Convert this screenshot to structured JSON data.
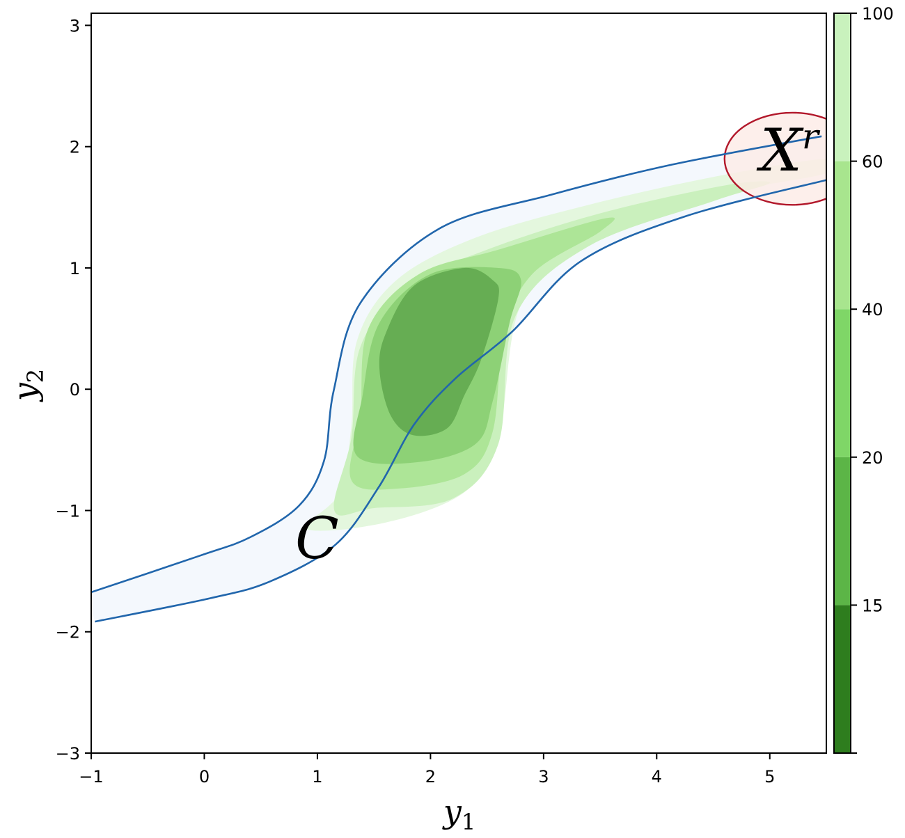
{
  "chart_data": {
    "type": "contour",
    "xlabel": {
      "base": "y",
      "sub": "1"
    },
    "ylabel": {
      "base": "y",
      "sub": "2"
    },
    "xlim": [
      -1,
      5.5
    ],
    "ylim": [
      -3,
      3.1
    ],
    "xticks": [
      -1,
      0,
      1,
      2,
      3,
      4,
      5
    ],
    "xtick_labels": [
      "−1",
      "0",
      "1",
      "2",
      "3",
      "4",
      "5"
    ],
    "yticks": [
      -3,
      -2,
      -1,
      0,
      1,
      2,
      3
    ],
    "ytick_labels": [
      "−3",
      "−2",
      "−1",
      "0",
      "1",
      "2",
      "3"
    ],
    "grid": false,
    "colorbar": {
      "levels": [
        15,
        20,
        40,
        60,
        100
      ],
      "tick_labels": [
        "15",
        "20",
        "40",
        "60",
        "100"
      ],
      "colors": [
        "#2e7d1e",
        "#5cb547",
        "#7fd667",
        "#a8e58e",
        "#c9f2bd"
      ],
      "fill_colors": [
        "#66ad53",
        "#8dd176",
        "#ade597",
        "#caf0bd",
        "#e4f7de"
      ]
    },
    "band": {
      "label": "C",
      "edge_color": "#2166ac",
      "fill_color": "#f4f8fd",
      "center": [
        [
          -1,
          -1.8
        ],
        [
          0,
          -1.55
        ],
        [
          0.5,
          -1.4
        ],
        [
          1.0,
          -1.12
        ],
        [
          1.3,
          -0.7
        ],
        [
          1.5,
          -0.15
        ],
        [
          1.8,
          0.4
        ],
        [
          2.4,
          0.9
        ],
        [
          3.2,
          1.33
        ],
        [
          4.2,
          1.64
        ],
        [
          5.5,
          1.91
        ]
      ],
      "halfwidth": [
        0.12,
        0.18,
        0.2,
        0.22,
        0.25,
        0.36,
        0.5,
        0.52,
        0.3,
        0.22,
        0.18
      ]
    },
    "region": {
      "label": "X",
      "superscript": "r",
      "center": [
        5.2,
        1.9
      ],
      "radii": [
        0.6,
        0.38
      ],
      "edge_color": "#b2182b",
      "fill_color": "#fdece6"
    }
  }
}
